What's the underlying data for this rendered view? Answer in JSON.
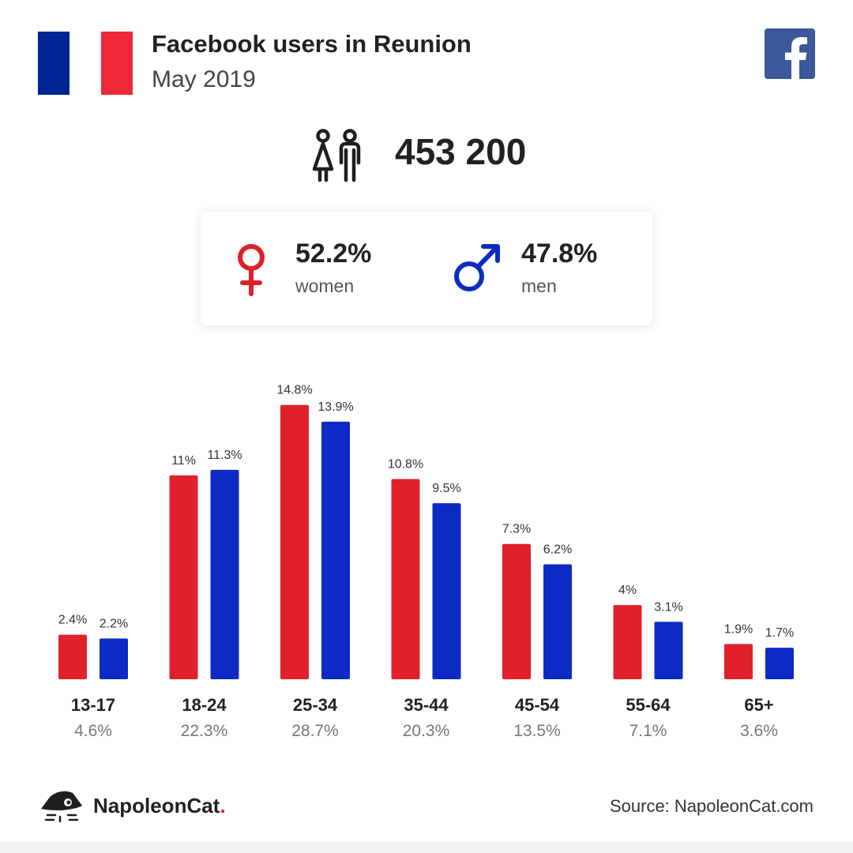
{
  "header": {
    "title": "Facebook users in Reunion",
    "subtitle": "May 2019"
  },
  "flag_colors": [
    "#002395",
    "#ffffff",
    "#ed2939"
  ],
  "total_users": "453 200",
  "gender": {
    "women_pct": "52.2%",
    "women_label": "women",
    "men_pct": "47.8%",
    "men_label": "men",
    "women_color": "#e0202a",
    "men_color": "#0d2bc4"
  },
  "chart_data": {
    "type": "bar",
    "categories": [
      "13-17",
      "18-24",
      "25-34",
      "35-44",
      "45-54",
      "55-64",
      "65+"
    ],
    "group_totals": [
      "4.6%",
      "22.3%",
      "28.7%",
      "20.3%",
      "13.5%",
      "7.1%",
      "3.6%"
    ],
    "series": [
      {
        "values": [
          2.4,
          11,
          14.8,
          10.8,
          7.3,
          4,
          1.9
        ],
        "labels": [
          "2.4%",
          "11%",
          "14.8%",
          "10.8%",
          "7.3%",
          "4%",
          "1.9%"
        ],
        "color": "#e0202a"
      },
      {
        "values": [
          2.2,
          11.3,
          13.9,
          9.5,
          6.2,
          3.1,
          1.7
        ],
        "labels": [
          "2.2%",
          "11.3%",
          "13.9%",
          "9.5%",
          "6.2%",
          "3.1%",
          "1.7%"
        ],
        "color": "#0d2bc4"
      }
    ],
    "ylim": [
      0,
      15
    ],
    "grid": false,
    "legend": "none"
  },
  "footer": {
    "brand": "NapoleonCat",
    "brand_dot": ".",
    "source": "Source: NapoleonCat.com"
  },
  "icons": {
    "facebook": "facebook-logo-icon",
    "people": "people-icon",
    "female": "female-symbol-icon",
    "male": "male-symbol-icon",
    "logo": "napoleoncat-logo-icon"
  }
}
